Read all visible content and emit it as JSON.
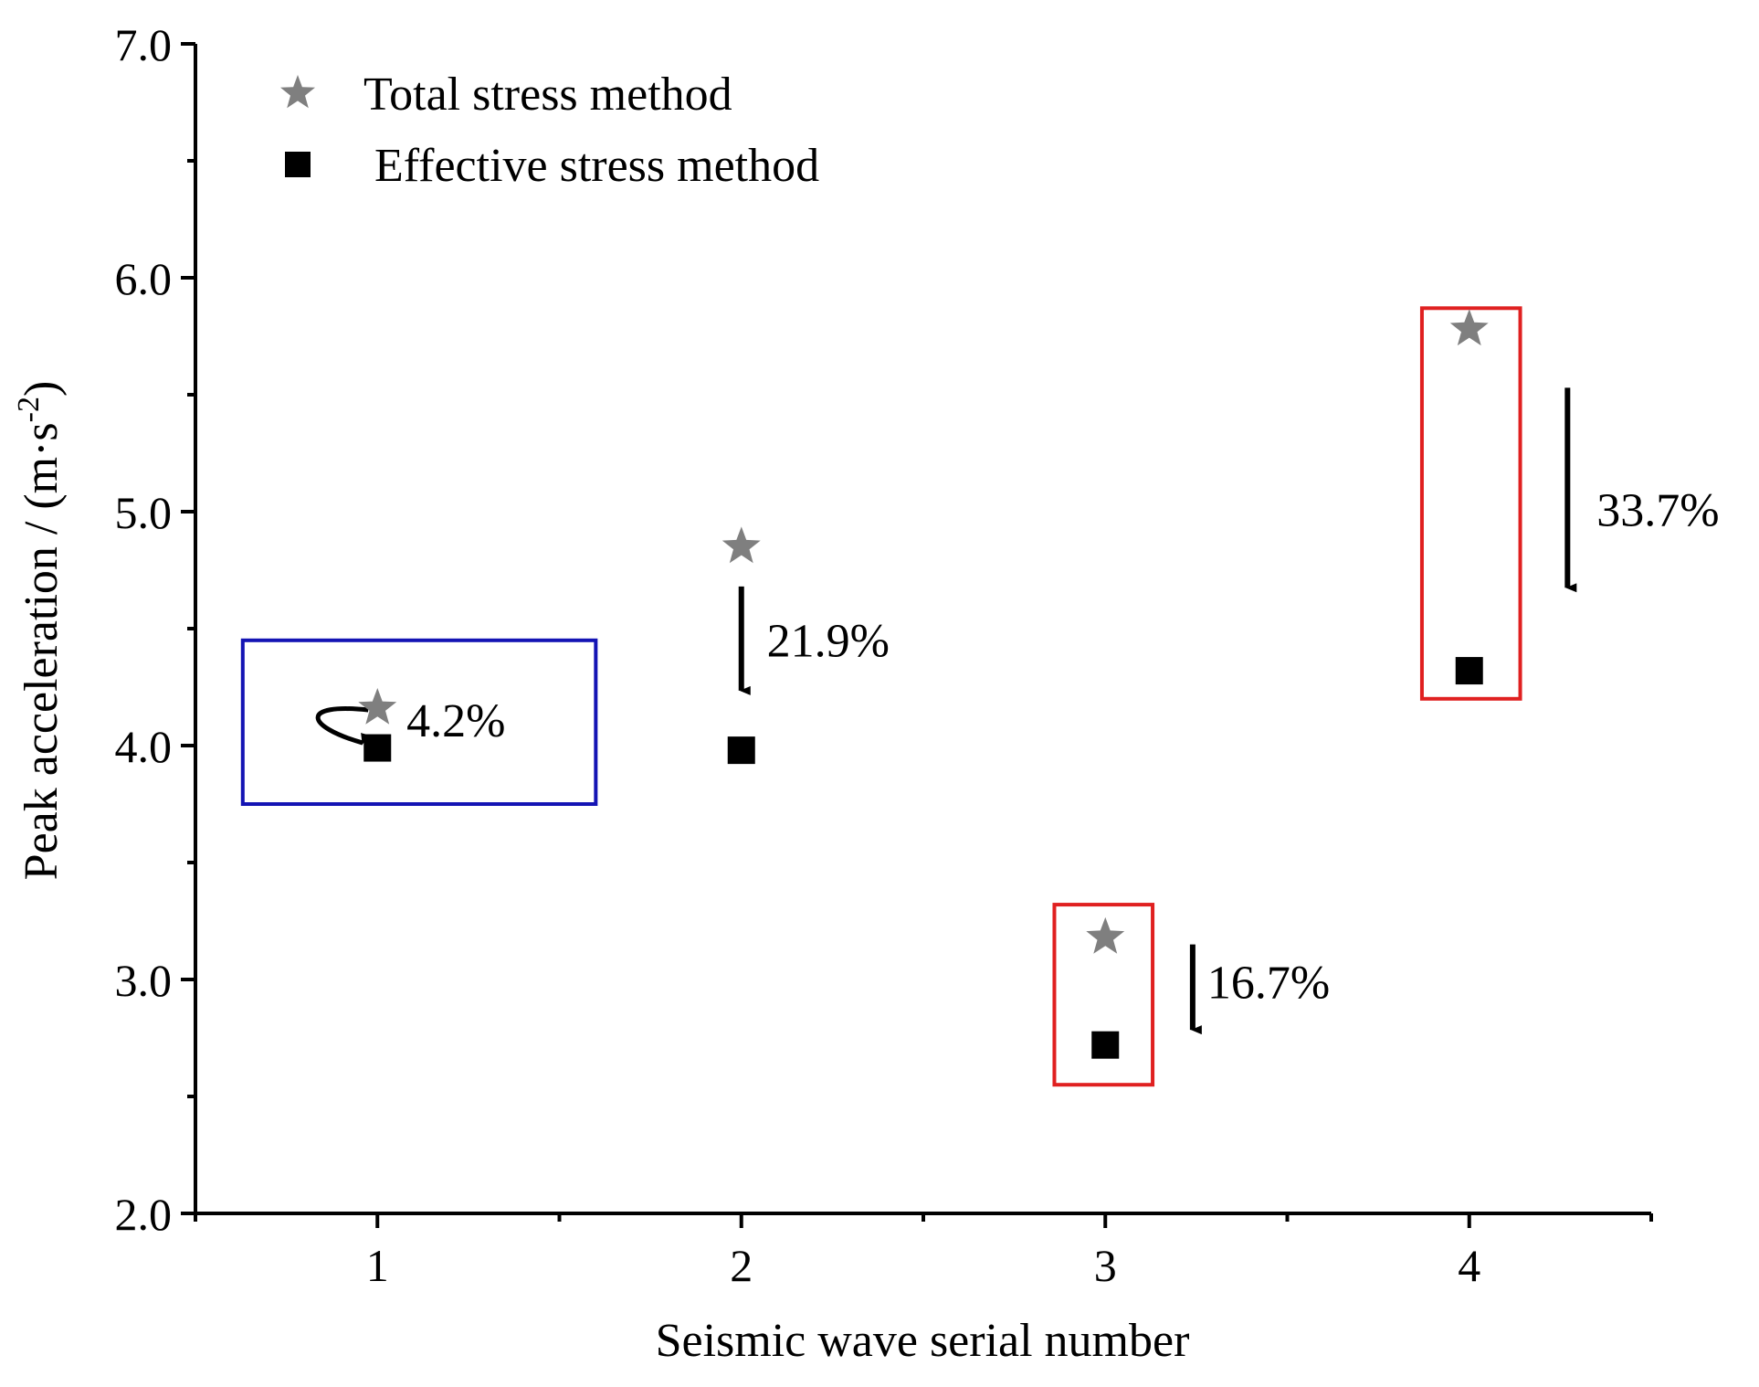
{
  "chart_data": {
    "type": "scatter",
    "xlabel": "Seismic wave serial number",
    "ylabel": "Peak acceleration / (m·s",
    "ylabel_sup": "-2",
    "ylabel_close": ")",
    "xlim": [
      0.5,
      4.5
    ],
    "ylim": [
      2.0,
      7.0
    ],
    "x_ticks": [
      1,
      2,
      3,
      4
    ],
    "x_tick_labels": [
      "1",
      "2",
      "3",
      "4"
    ],
    "y_ticks": [
      2.0,
      3.0,
      4.0,
      5.0,
      6.0,
      7.0
    ],
    "y_tick_labels": [
      "2.0",
      "3.0",
      "4.0",
      "5.0",
      "6.0",
      "7.0"
    ],
    "series": [
      {
        "name": "Total stress method",
        "marker": "star",
        "color": "#7f7f7f",
        "x": [
          1,
          2,
          3,
          4
        ],
        "y": [
          4.16,
          4.85,
          3.18,
          5.78
        ]
      },
      {
        "name": "Effective stress method",
        "marker": "square",
        "color": "#000000",
        "x": [
          1,
          2,
          3,
          4
        ],
        "y": [
          3.99,
          3.98,
          2.72,
          4.32
        ]
      }
    ],
    "legend": {
      "position": "top-left",
      "entries": [
        "Total stress method",
        "Effective stress method"
      ]
    },
    "annotations": [
      {
        "text": "4.2%",
        "x": 1,
        "y": 4.08,
        "arrow": "curved",
        "box_color": "#1414b4",
        "box_x": [
          0.63,
          1.6
        ],
        "box_y": [
          3.75,
          4.45
        ]
      },
      {
        "text": "21.9%",
        "x": 2,
        "y": 4.4,
        "arrow": "down",
        "box_color": "",
        "box_x": [],
        "box_y": []
      },
      {
        "text": "16.7%",
        "x": 3.25,
        "y": 2.96,
        "arrow": "down",
        "box_color": "#e02020",
        "box_x": [
          2.86,
          3.13
        ],
        "box_y": [
          2.55,
          3.32
        ]
      },
      {
        "text": "33.7%",
        "x": 4.26,
        "y": 5.07,
        "arrow": "down",
        "box_color": "#e02020",
        "box_x": [
          3.87,
          4.14
        ],
        "box_y": [
          4.2,
          5.87
        ]
      }
    ]
  }
}
